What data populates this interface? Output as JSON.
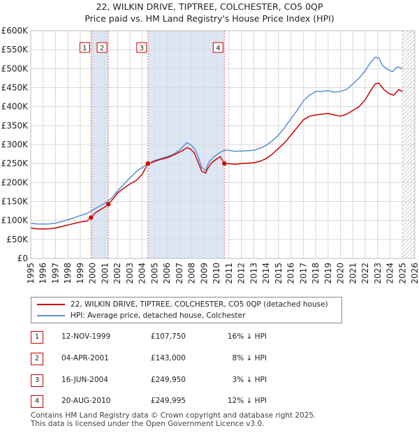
{
  "header": {
    "title": "22, WILKIN DRIVE, TIPTREE, COLCHESTER, CO5 0QP",
    "subtitle": "Price paid vs. HM Land Registry's House Price Index (HPI)"
  },
  "legend": {
    "property_label": "22, WILKIN DRIVE, TIPTREE, COLCHESTER, CO5 0QP (detached house)",
    "hpi_label": "HPI: Average price, detached house, Colchester"
  },
  "transactions": [
    {
      "num": "1",
      "date": "12-NOV-1999",
      "price": "£107,750",
      "hpi": "16% ↓ HPI"
    },
    {
      "num": "2",
      "date": "04-APR-2001",
      "price": "£143,000",
      "hpi": "8% ↓ HPI"
    },
    {
      "num": "3",
      "date": "16-JUN-2004",
      "price": "£249,950",
      "hpi": "3% ↓ HPI"
    },
    {
      "num": "4",
      "date": "20-AUG-2010",
      "price": "£249,995",
      "hpi": "12% ↓ HPI"
    }
  ],
  "footer": {
    "line1": "Contains HM Land Registry data © Crown copyright and database right 2025.",
    "line2": "This data is licensed under the Open Government Licence v3.0."
  },
  "colors": {
    "property": "#cc0000",
    "hpi": "#5b8fd0",
    "shade": "#dde6f4",
    "grid": "#d9d9d9"
  },
  "chart_data": {
    "type": "line",
    "xlim": [
      1995,
      2026
    ],
    "ylim": [
      0,
      600000
    ],
    "x_ticks": [
      1995,
      1996,
      1997,
      1998,
      1999,
      2000,
      2001,
      2002,
      2003,
      2004,
      2005,
      2006,
      2007,
      2008,
      2009,
      2010,
      2011,
      2012,
      2013,
      2014,
      2015,
      2016,
      2017,
      2018,
      2019,
      2020,
      2021,
      2022,
      2023,
      2024,
      2025,
      2026
    ],
    "y_ticks": [
      {
        "value": 0,
        "label": "£0"
      },
      {
        "value": 50000,
        "label": "£50K"
      },
      {
        "value": 100000,
        "label": "£100K"
      },
      {
        "value": 150000,
        "label": "£150K"
      },
      {
        "value": 200000,
        "label": "£200K"
      },
      {
        "value": 250000,
        "label": "£250K"
      },
      {
        "value": 300000,
        "label": "£300K"
      },
      {
        "value": 350000,
        "label": "£350K"
      },
      {
        "value": 400000,
        "label": "£400K"
      },
      {
        "value": 450000,
        "label": "£450K"
      },
      {
        "value": 500000,
        "label": "£500K"
      },
      {
        "value": 550000,
        "label": "£550K"
      },
      {
        "value": 600000,
        "label": "£600K"
      }
    ],
    "shaded_ranges": [
      [
        1999.87,
        2001.26
      ],
      [
        2004.46,
        2010.63
      ]
    ],
    "future_hatch_from": 2025.0,
    "sales": [
      {
        "label": "1",
        "x": 1999.87,
        "y": 107750
      },
      {
        "label": "2",
        "x": 2001.26,
        "y": 143000
      },
      {
        "label": "3",
        "x": 2004.46,
        "y": 249950
      },
      {
        "label": "4",
        "x": 2010.63,
        "y": 249995
      }
    ],
    "series": [
      {
        "name": "22, WILKIN DRIVE, TIPTREE, COLCHESTER, CO5 0QP (detached house)",
        "x": [
          1995.0,
          1995.5,
          1996.0,
          1996.5,
          1997.0,
          1997.5,
          1998.0,
          1998.5,
          1999.0,
          1999.5,
          1999.87,
          2000.2,
          2000.6,
          2001.0,
          2001.26,
          2001.6,
          2002.0,
          2002.5,
          2003.0,
          2003.5,
          2004.0,
          2004.46,
          2004.8,
          2005.2,
          2005.6,
          2006.0,
          2006.5,
          2007.0,
          2007.3,
          2007.6,
          2007.9,
          2008.2,
          2008.5,
          2008.8,
          2009.1,
          2009.3,
          2009.6,
          2010.0,
          2010.3,
          2010.63,
          2011.0,
          2011.5,
          2012.0,
          2012.5,
          2013.0,
          2013.5,
          2014.0,
          2014.5,
          2015.0,
          2015.5,
          2016.0,
          2016.5,
          2017.0,
          2017.5,
          2018.0,
          2018.5,
          2019.0,
          2019.5,
          2020.0,
          2020.5,
          2021.0,
          2021.5,
          2022.0,
          2022.4,
          2022.8,
          2023.1,
          2023.5,
          2023.9,
          2024.3,
          2024.7,
          2025.0
        ],
        "values": [
          80000,
          78000,
          77500,
          78000,
          80000,
          84000,
          88000,
          92000,
          96000,
          98000,
          107750,
          120000,
          128000,
          136000,
          143000,
          155000,
          172000,
          185000,
          196000,
          205000,
          222000,
          249950,
          253000,
          258000,
          262000,
          265000,
          272000,
          280000,
          285000,
          292000,
          288000,
          278000,
          255000,
          230000,
          225000,
          238000,
          252000,
          262000,
          268000,
          249995,
          250000,
          248000,
          250000,
          251000,
          252000,
          256000,
          263000,
          275000,
          290000,
          305000,
          325000,
          345000,
          365000,
          375000,
          378000,
          380000,
          382000,
          378000,
          375000,
          380000,
          390000,
          400000,
          418000,
          440000,
          460000,
          462000,
          445000,
          435000,
          430000,
          445000,
          440000
        ]
      },
      {
        "name": "HPI: Average price, detached house, Colchester",
        "x": [
          1995.0,
          1995.5,
          1996.0,
          1996.5,
          1997.0,
          1997.5,
          1998.0,
          1998.5,
          1999.0,
          1999.5,
          2000.0,
          2000.5,
          2001.0,
          2001.5,
          2002.0,
          2002.5,
          2003.0,
          2003.5,
          2004.0,
          2004.5,
          2005.0,
          2005.5,
          2006.0,
          2006.5,
          2007.0,
          2007.3,
          2007.6,
          2007.9,
          2008.2,
          2008.5,
          2008.8,
          2009.1,
          2009.4,
          2009.8,
          2010.2,
          2010.6,
          2011.0,
          2011.5,
          2012.0,
          2012.5,
          2013.0,
          2013.5,
          2014.0,
          2014.5,
          2015.0,
          2015.5,
          2016.0,
          2016.5,
          2017.0,
          2017.5,
          2018.0,
          2018.5,
          2019.0,
          2019.5,
          2020.0,
          2020.5,
          2021.0,
          2021.5,
          2022.0,
          2022.4,
          2022.8,
          2023.1,
          2023.4,
          2023.8,
          2024.2,
          2024.6,
          2025.0
        ],
        "values": [
          93000,
          91000,
          90500,
          91000,
          93000,
          97000,
          102000,
          107000,
          113000,
          118000,
          127000,
          137000,
          146000,
          158000,
          178000,
          195000,
          212000,
          228000,
          240000,
          250000,
          258000,
          263000,
          268000,
          274000,
          285000,
          295000,
          305000,
          300000,
          290000,
          270000,
          240000,
          232000,
          255000,
          268000,
          278000,
          285000,
          285000,
          282000,
          283000,
          284000,
          285000,
          290000,
          298000,
          310000,
          325000,
          345000,
          368000,
          390000,
          415000,
          430000,
          440000,
          440000,
          442000,
          438000,
          440000,
          445000,
          460000,
          475000,
          495000,
          515000,
          530000,
          528000,
          508000,
          498000,
          492000,
          505000,
          500000
        ]
      }
    ]
  }
}
